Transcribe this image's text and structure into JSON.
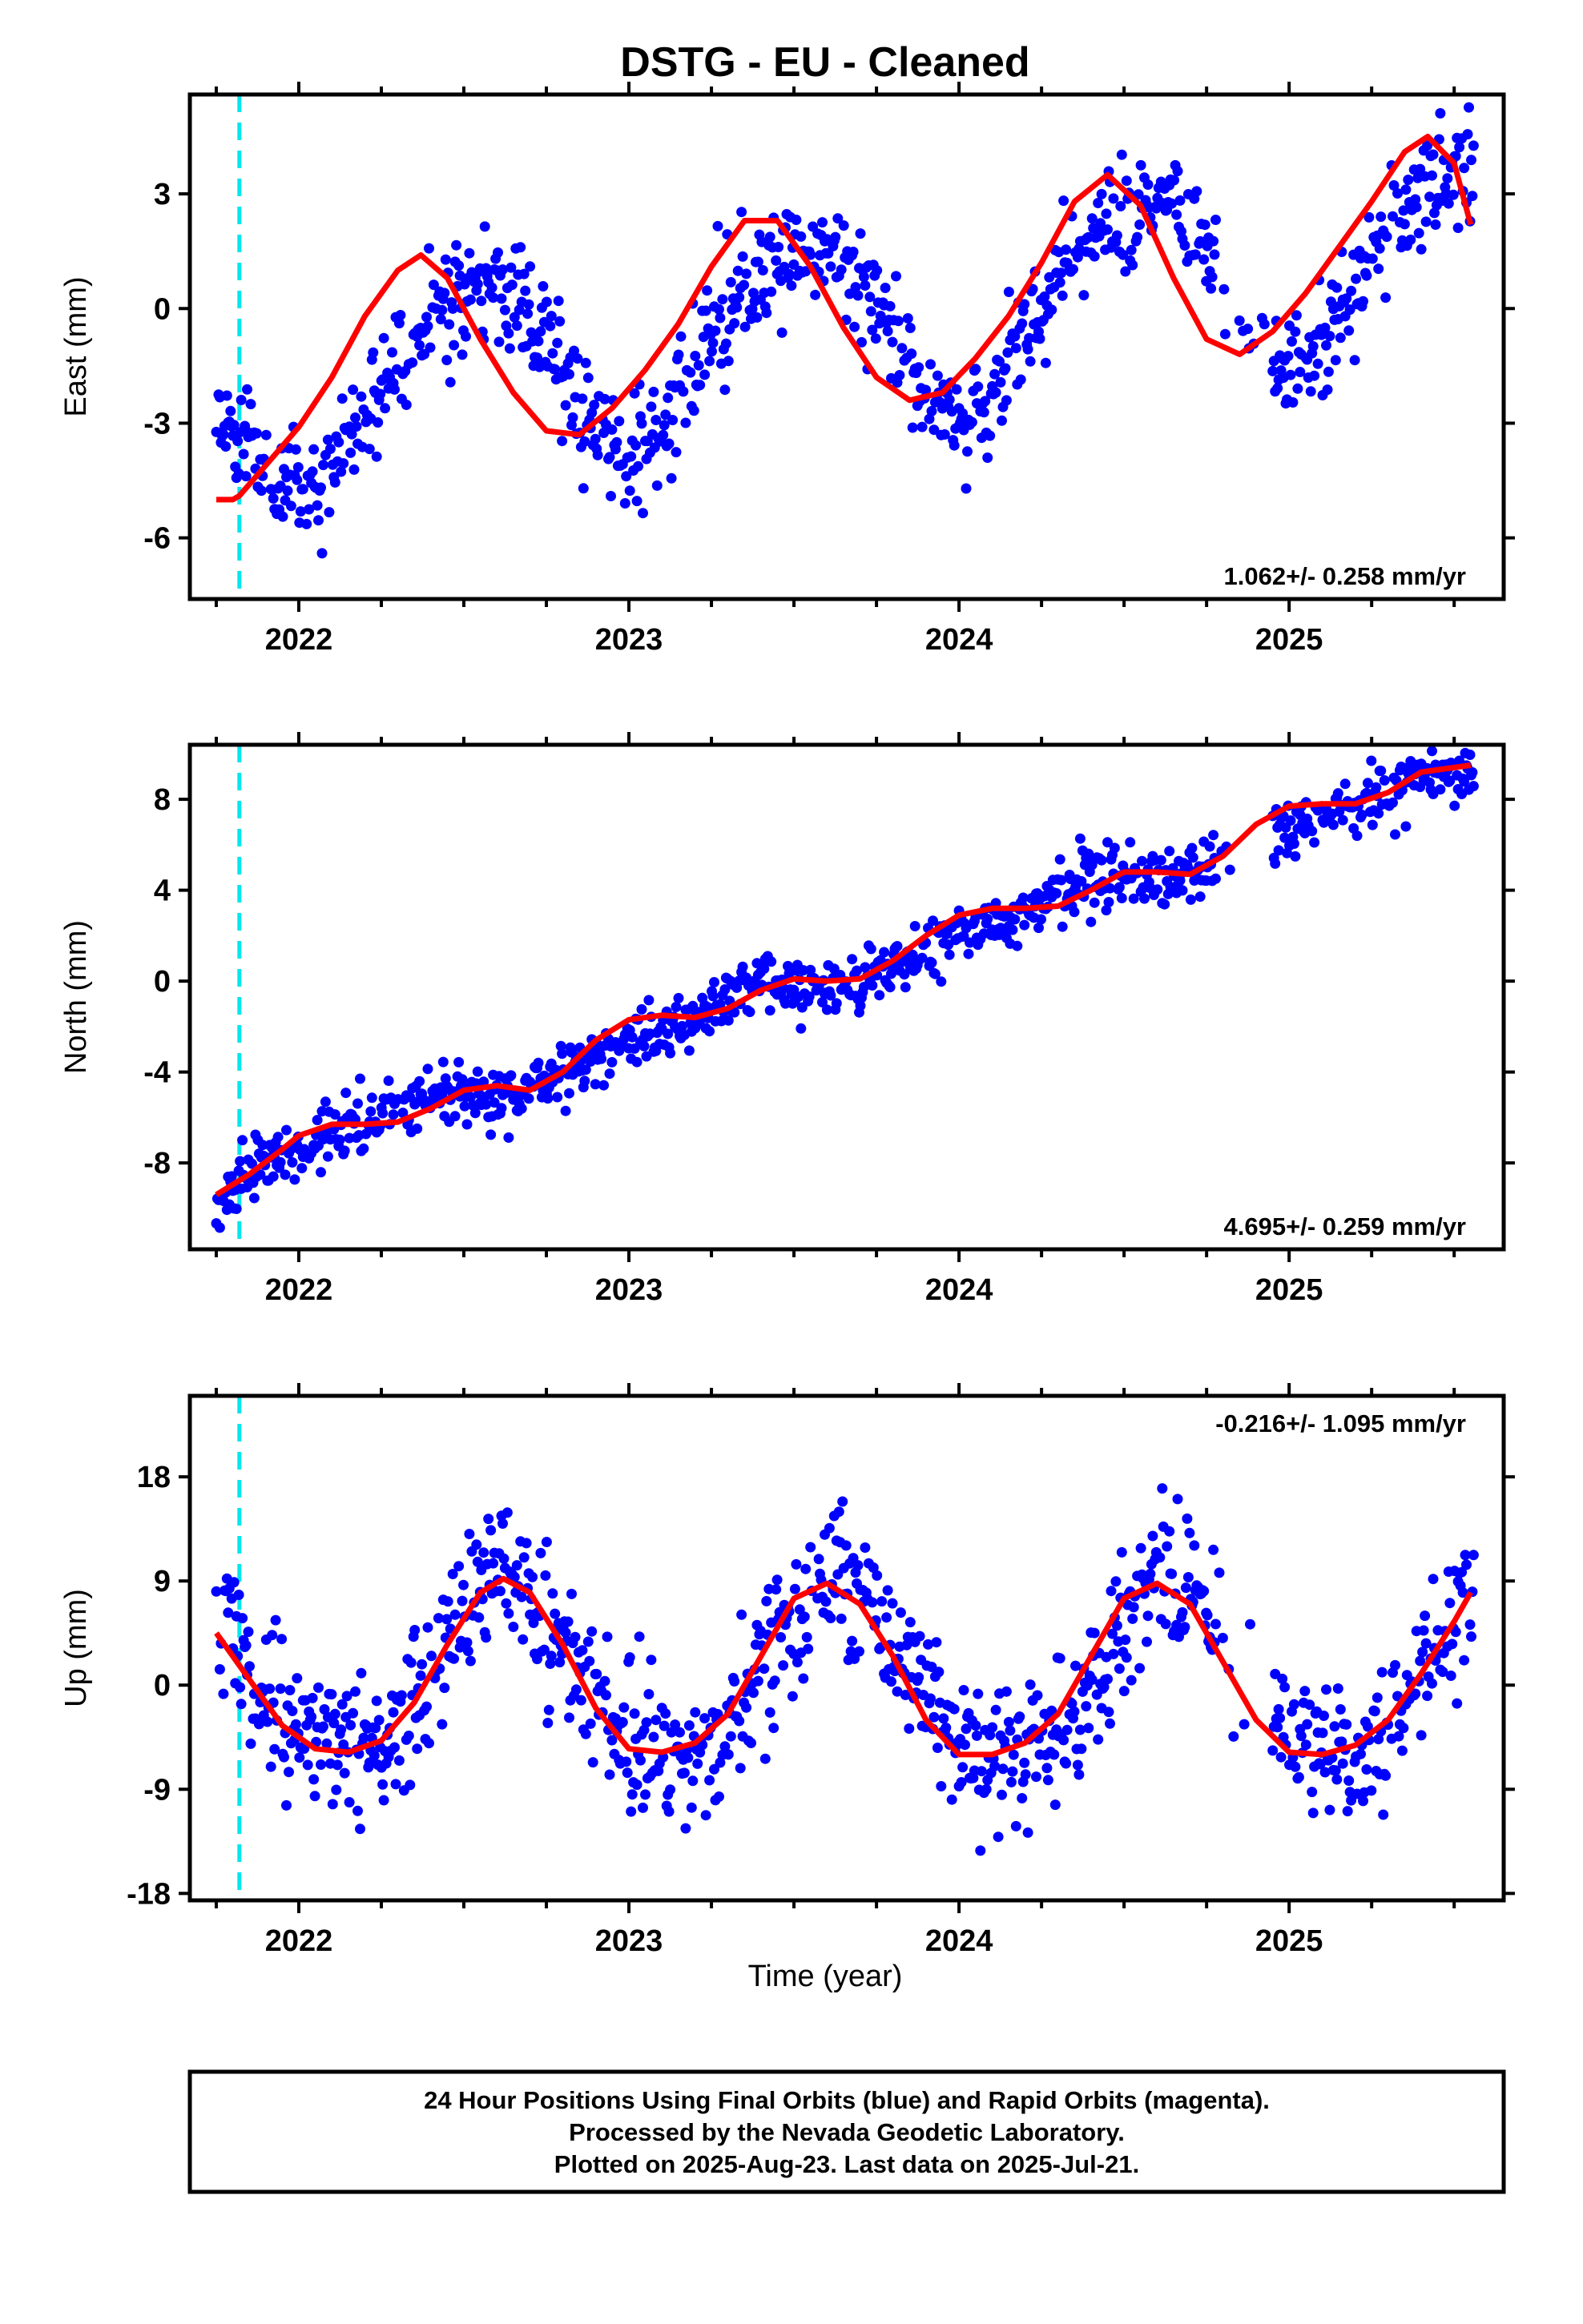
{
  "title": "DSTG  - EU - Cleaned",
  "xlabel": "Time (year)",
  "x_ticks": [
    "2022",
    "2023",
    "2024",
    "2025"
  ],
  "colors": {
    "final_orbits": "#0000ff",
    "model_fit": "#ff0000",
    "equipment_change": "#00e5ee",
    "frame": "#000000"
  },
  "footer": {
    "line1": "24 Hour Positions Using Final Orbits (blue) and Rapid Orbits (magenta).",
    "line2": "Processed by the Nevada Geodetic Laboratory.",
    "line3": "Plotted on 2025-Aug-23. Last data on 2025-Jul-21."
  },
  "chart_data": [
    {
      "type": "scatter",
      "ylabel": "East (mm)",
      "rate_label": "1.062+/- 0.258 mm/yr",
      "xlim": [
        2021.67,
        2025.65
      ],
      "ylim": [
        -7.6,
        5.6
      ],
      "yticks": [
        -6,
        -3,
        0,
        3
      ],
      "equipment_change_year": 2021.82,
      "signal": {
        "offset": -2.5,
        "trend": 1.062,
        "amp1": 2.4,
        "phase1": 0.27,
        "amp2": 0.3,
        "phase2": 0.1,
        "noise": 0.75
      },
      "model_fit": {
        "x": [
          2021.75,
          2021.8,
          2021.82,
          2021.9,
          2022.0,
          2022.1,
          2022.2,
          2022.3,
          2022.37,
          2022.45,
          2022.55,
          2022.65,
          2022.75,
          2022.85,
          2022.95,
          2023.05,
          2023.15,
          2023.25,
          2023.35,
          2023.45,
          2023.55,
          2023.65,
          2023.75,
          2023.85,
          2023.95,
          2024.05,
          2024.15,
          2024.25,
          2024.35,
          2024.45,
          2024.55,
          2024.65,
          2024.75,
          2024.85,
          2024.95,
          2025.05,
          2025.15,
          2025.25,
          2025.35,
          2025.42,
          2025.5,
          2025.55
        ],
        "y": [
          -5.0,
          -5.0,
          -4.9,
          -4.1,
          -3.1,
          -1.8,
          -0.2,
          1.0,
          1.4,
          0.8,
          -0.8,
          -2.2,
          -3.2,
          -3.3,
          -2.6,
          -1.6,
          -0.4,
          1.1,
          2.3,
          2.3,
          1.1,
          -0.5,
          -1.8,
          -2.4,
          -2.2,
          -1.3,
          -0.2,
          1.2,
          2.8,
          3.5,
          2.7,
          0.8,
          -0.8,
          -1.2,
          -0.6,
          0.4,
          1.6,
          2.8,
          4.1,
          4.5,
          3.8,
          2.2
        ]
      },
      "seed": 11
    },
    {
      "type": "scatter",
      "ylabel": "North (mm)",
      "rate_label": "4.695+/- 0.259 mm/yr",
      "xlim": [
        2021.67,
        2025.65
      ],
      "ylim": [
        -11.8,
        10.4
      ],
      "yticks": [
        -8,
        -4,
        0,
        4,
        8
      ],
      "equipment_change_year": 2021.82,
      "signal": {
        "offset": -8.6,
        "trend": 4.695,
        "amp1": 0.5,
        "phase1": 0.0,
        "amp2": 0.2,
        "phase2": 0.3,
        "noise": 0.65
      },
      "model_fit": {
        "x": [
          2021.75,
          2021.85,
          2021.95,
          2022.0,
          2022.1,
          2022.2,
          2022.3,
          2022.4,
          2022.5,
          2022.6,
          2022.7,
          2022.8,
          2022.9,
          2023.0,
          2023.1,
          2023.2,
          2023.3,
          2023.4,
          2023.5,
          2023.6,
          2023.7,
          2023.8,
          2023.9,
          2024.0,
          2024.1,
          2024.2,
          2024.3,
          2024.4,
          2024.5,
          2024.6,
          2024.7,
          2024.8,
          2024.9,
          2025.0,
          2025.1,
          2025.2,
          2025.3,
          2025.4,
          2025.55
        ],
        "y": [
          -9.4,
          -8.5,
          -7.4,
          -6.8,
          -6.3,
          -6.3,
          -6.2,
          -5.6,
          -4.8,
          -4.6,
          -4.8,
          -4.0,
          -2.6,
          -1.7,
          -1.5,
          -1.6,
          -1.2,
          -0.4,
          0.1,
          0.0,
          0.1,
          0.9,
          2.0,
          2.9,
          3.2,
          3.2,
          3.3,
          4.0,
          4.8,
          4.8,
          4.7,
          5.5,
          6.9,
          7.7,
          7.8,
          7.8,
          8.3,
          9.2,
          9.5
        ]
      },
      "seed": 23
    },
    {
      "type": "scatter",
      "ylabel": "Up (mm)",
      "rate_label": "-0.216+/- 1.095 mm/yr",
      "xlim": [
        2021.67,
        2025.65
      ],
      "ylim": [
        -18.6,
        25.0
      ],
      "yticks": [
        -18,
        -9,
        0,
        9,
        18
      ],
      "equipment_change_year": 2021.82,
      "signal": {
        "offset": 1.0,
        "trend": -0.216,
        "amp1": 7.5,
        "phase1": 0.38,
        "amp2": 1.2,
        "phase2": 0.0,
        "noise": 3.0
      },
      "model_fit": {
        "x": [
          2021.75,
          2021.85,
          2021.95,
          2022.05,
          2022.15,
          2022.25,
          2022.35,
          2022.45,
          2022.55,
          2022.62,
          2022.7,
          2022.8,
          2022.9,
          2023.0,
          2023.1,
          2023.2,
          2023.3,
          2023.4,
          2023.5,
          2023.6,
          2023.7,
          2023.8,
          2023.9,
          2024.0,
          2024.1,
          2024.2,
          2024.3,
          2024.4,
          2024.5,
          2024.6,
          2024.7,
          2024.8,
          2024.9,
          2025.0,
          2025.1,
          2025.2,
          2025.3,
          2025.4,
          2025.5,
          2025.55
        ],
        "y": [
          4.5,
          0.5,
          -3.5,
          -5.5,
          -5.8,
          -4.8,
          -1.5,
          3.5,
          8.0,
          9.2,
          8.0,
          3.5,
          -2.0,
          -5.5,
          -5.8,
          -5.0,
          -2.5,
          2.5,
          7.5,
          8.8,
          7.0,
          2.5,
          -3.0,
          -6.0,
          -6.0,
          -5.0,
          -2.5,
          2.5,
          7.5,
          8.8,
          7.0,
          2.0,
          -3.0,
          -5.8,
          -6.0,
          -5.2,
          -3.0,
          1.0,
          5.5,
          8.0
        ]
      },
      "seed": 37
    }
  ]
}
